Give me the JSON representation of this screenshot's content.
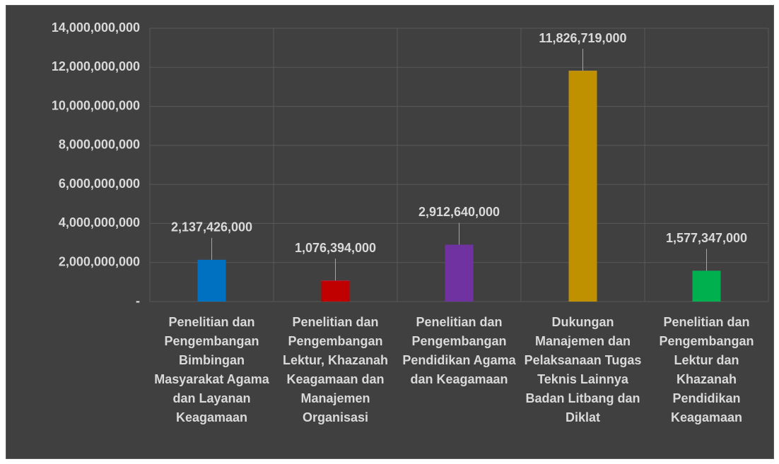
{
  "chart_data": {
    "type": "bar",
    "categories": [
      "Penelitian dan Pengembangan Bimbingan Masyarakat Agama dan Layanan Keagamaan",
      "Penelitian dan Pengembangan Lektur, Khazanah Keagamaan dan Manajemen Organisasi",
      "Penelitian dan Pengembangan Pendidikan Agama dan Keagamaan",
      "Dukungan Manajemen dan Pelaksanaan Tugas Teknis Lainnya Badan Litbang dan Diklat",
      "Penelitian dan Pengembangan Lektur dan Khazanah Pendidikan Keagamaan"
    ],
    "values": [
      2137426000,
      1076394000,
      2912640000,
      11826719000,
      1577347000
    ],
    "value_labels": [
      "2,137,426,000",
      "1,076,394,000",
      "2,912,640,000",
      "11,826,719,000",
      "1,577,347,000"
    ],
    "colors": [
      "#0070c0",
      "#c00000",
      "#7030a0",
      "#bf9000",
      "#00b050"
    ],
    "ylim": [
      0,
      14000000000
    ],
    "yticks": [
      {
        "value": 0,
        "label": "-"
      },
      {
        "value": 2000000000,
        "label": "2,000,000,000"
      },
      {
        "value": 4000000000,
        "label": "4,000,000,000"
      },
      {
        "value": 6000000000,
        "label": "6,000,000,000"
      },
      {
        "value": 8000000000,
        "label": "8,000,000,000"
      },
      {
        "value": 10000000000,
        "label": "10,000,000,000"
      },
      {
        "value": 12000000000,
        "label": "12,000,000,000"
      },
      {
        "value": 14000000000,
        "label": "14,000,000,000"
      }
    ],
    "grid": true
  }
}
